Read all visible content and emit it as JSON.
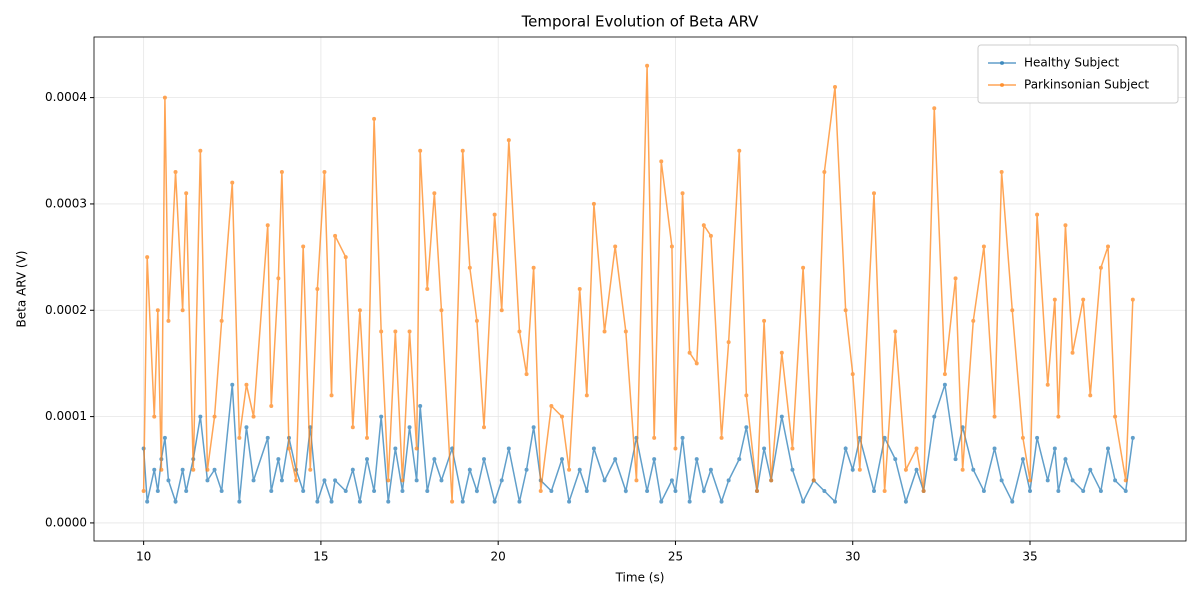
{
  "chart_data": {
    "type": "line",
    "title": "Temporal Evolution of Beta ARV",
    "xlabel": "Time (s)",
    "ylabel": "Beta ARV (V)",
    "x": [
      10.0,
      10.1,
      10.3,
      10.4,
      10.5,
      10.6,
      10.7,
      10.9,
      11.1,
      11.2,
      11.4,
      11.6,
      11.8,
      12.0,
      12.2,
      12.5,
      12.7,
      12.9,
      13.1,
      13.5,
      13.6,
      13.8,
      13.9,
      14.1,
      14.3,
      14.5,
      14.7,
      14.9,
      15.1,
      15.3,
      15.4,
      15.7,
      15.9,
      16.1,
      16.3,
      16.5,
      16.7,
      16.9,
      17.1,
      17.3,
      17.5,
      17.7,
      17.8,
      18.0,
      18.2,
      18.4,
      18.7,
      19.0,
      19.2,
      19.4,
      19.6,
      19.9,
      20.1,
      20.3,
      20.6,
      20.8,
      21.0,
      21.2,
      21.5,
      21.8,
      22.0,
      22.3,
      22.5,
      22.7,
      23.0,
      23.3,
      23.6,
      23.9,
      24.2,
      24.4,
      24.6,
      24.9,
      25.0,
      25.2,
      25.4,
      25.6,
      25.8,
      26.0,
      26.3,
      26.5,
      26.8,
      27.0,
      27.3,
      27.5,
      27.7,
      28.0,
      28.3,
      28.6,
      28.9,
      29.2,
      29.5,
      29.8,
      30.0,
      30.2,
      30.6,
      30.9,
      31.2,
      31.5,
      31.8,
      32.0,
      32.3,
      32.6,
      32.9,
      33.1,
      33.4,
      33.7,
      34.0,
      34.2,
      34.5,
      34.8,
      35.0,
      35.2,
      35.5,
      35.7,
      35.8,
      36.0,
      36.2,
      36.5,
      36.7,
      37.0,
      37.2,
      37.4,
      37.7,
      37.9
    ],
    "series": [
      {
        "name": "Healthy Subject",
        "color": "#1f77b4",
        "values": [
          7e-05,
          2e-05,
          5e-05,
          3e-05,
          6e-05,
          8e-05,
          4e-05,
          2e-05,
          5e-05,
          3e-05,
          6e-05,
          0.0001,
          4e-05,
          5e-05,
          3e-05,
          0.00013,
          2e-05,
          9e-05,
          4e-05,
          8e-05,
          3e-05,
          6e-05,
          4e-05,
          8e-05,
          5e-05,
          3e-05,
          9e-05,
          2e-05,
          4e-05,
          2e-05,
          4e-05,
          3e-05,
          5e-05,
          2e-05,
          6e-05,
          3e-05,
          0.0001,
          2e-05,
          7e-05,
          3e-05,
          9e-05,
          4e-05,
          0.00011,
          3e-05,
          6e-05,
          4e-05,
          7e-05,
          2e-05,
          5e-05,
          3e-05,
          6e-05,
          2e-05,
          4e-05,
          7e-05,
          2e-05,
          5e-05,
          9e-05,
          4e-05,
          3e-05,
          6e-05,
          2e-05,
          5e-05,
          3e-05,
          7e-05,
          4e-05,
          6e-05,
          3e-05,
          8e-05,
          3e-05,
          6e-05,
          2e-05,
          4e-05,
          3e-05,
          8e-05,
          2e-05,
          6e-05,
          3e-05,
          5e-05,
          2e-05,
          4e-05,
          6e-05,
          9e-05,
          3e-05,
          7e-05,
          4e-05,
          0.0001,
          5e-05,
          2e-05,
          4e-05,
          3e-05,
          2e-05,
          7e-05,
          5e-05,
          8e-05,
          3e-05,
          8e-05,
          6e-05,
          2e-05,
          5e-05,
          3e-05,
          0.0001,
          0.00013,
          6e-05,
          9e-05,
          5e-05,
          3e-05,
          7e-05,
          4e-05,
          2e-05,
          6e-05,
          3e-05,
          8e-05,
          4e-05,
          7e-05,
          3e-05,
          6e-05,
          4e-05,
          3e-05,
          5e-05,
          3e-05,
          7e-05,
          4e-05,
          3e-05,
          8e-05
        ]
      },
      {
        "name": "Parkinsonian Subject",
        "color": "#ff7f0e",
        "values": [
          3e-05,
          0.00025,
          0.0001,
          0.0002,
          5e-05,
          0.0004,
          0.00019,
          0.00033,
          0.0002,
          0.00031,
          5e-05,
          0.00035,
          5e-05,
          0.0001,
          0.00019,
          0.00032,
          8e-05,
          0.00013,
          0.0001,
          0.00028,
          0.00011,
          0.00023,
          0.00033,
          7e-05,
          4e-05,
          0.00026,
          5e-05,
          0.00022,
          0.00033,
          0.00012,
          0.00027,
          0.00025,
          9e-05,
          0.0002,
          8e-05,
          0.00038,
          0.00018,
          4e-05,
          0.00018,
          4e-05,
          0.00018,
          7e-05,
          0.00035,
          0.00022,
          0.00031,
          0.0002,
          2e-05,
          0.00035,
          0.00024,
          0.00019,
          9e-05,
          0.00029,
          0.0002,
          0.00036,
          0.00018,
          0.00014,
          0.00024,
          3e-05,
          0.00011,
          0.0001,
          5e-05,
          0.00022,
          0.00012,
          0.0003,
          0.00018,
          0.00026,
          0.00018,
          4e-05,
          0.00043,
          8e-05,
          0.00034,
          0.00026,
          7e-05,
          0.00031,
          0.00016,
          0.00015,
          0.00028,
          0.00027,
          8e-05,
          0.00017,
          0.00035,
          0.00012,
          3e-05,
          0.00019,
          4e-05,
          0.00016,
          7e-05,
          0.00024,
          4e-05,
          0.00033,
          0.00041,
          0.0002,
          0.00014,
          5e-05,
          0.00031,
          3e-05,
          0.00018,
          5e-05,
          7e-05,
          3e-05,
          0.00039,
          0.00014,
          0.00023,
          5e-05,
          0.00019,
          0.00026,
          0.0001,
          0.00033,
          0.0002,
          8e-05,
          4e-05,
          0.00029,
          0.00013,
          0.00021,
          0.0001,
          0.00028,
          0.00016,
          0.00021,
          0.00012,
          0.00024,
          0.00026,
          0.0001,
          4e-05,
          0.00021
        ]
      }
    ],
    "xlim": [
      8.6,
      39.4
    ],
    "xticks": [
      10,
      15,
      20,
      25,
      30,
      35
    ],
    "ylim": [
      -1.7e-05,
      0.000457
    ],
    "yticks": [
      {
        "value": 0,
        "label": "0.0000"
      },
      0.0001,
      0.0002,
      0.0003,
      0.0004
    ],
    "grid": true,
    "legend": "upper right"
  }
}
